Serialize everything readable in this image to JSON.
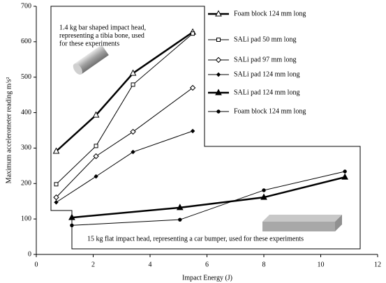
{
  "chart_data": {
    "type": "line",
    "y_label": "Maximum accelerometer reading m/s²",
    "x_label": "Impact Energy (J)",
    "xlim": [
      0,
      12
    ],
    "xticks": [
      0,
      2,
      4,
      6,
      8,
      10,
      12
    ],
    "ylim": [
      0,
      700
    ],
    "yticks": [
      0,
      100,
      200,
      300,
      400,
      500,
      600,
      700
    ],
    "legend": "upper right",
    "annotations": [
      {
        "lines": [
          "1.4 kg bar shaped impact head,",
          "representing a tibia bone, used",
          "for these experiments"
        ]
      },
      {
        "lines": [
          "15 kg flat impact head, representing a car bumper, used for these experiments"
        ]
      }
    ],
    "series": [
      {
        "name": "Foam block 124 mm long",
        "color": "#000000",
        "marker": "triangle-open",
        "line_width": 2.5,
        "x": [
          0.7,
          2.1,
          3.4,
          5.5
        ],
        "values": [
          291,
          393,
          511,
          627
        ]
      },
      {
        "name": "SALi pad 50 mm long",
        "color": "#000000",
        "marker": "square-open",
        "line_width": 1,
        "x": [
          0.7,
          2.1,
          3.4,
          5.5
        ],
        "values": [
          198,
          306,
          479,
          623
        ]
      },
      {
        "name": "SALi pad 97 mm long",
        "color": "#000000",
        "marker": "diamond-open",
        "line_width": 1,
        "x": [
          0.7,
          2.1,
          3.4,
          5.5
        ],
        "values": [
          161,
          277,
          346,
          470
        ]
      },
      {
        "name": "SALi pad 124 mm long",
        "color": "#000000",
        "marker": "diamond",
        "line_width": 1,
        "x": [
          0.7,
          2.1,
          3.4,
          5.5
        ],
        "values": [
          147,
          220,
          289,
          348
        ]
      },
      {
        "name": "SALi pad 124 mm long",
        "color": "#000000",
        "marker": "triangle",
        "line_width": 2.5,
        "x": [
          1.25,
          5.05,
          8.0,
          10.85
        ],
        "values": [
          104,
          132,
          161,
          218
        ]
      },
      {
        "name": "Foam block 124 mm long",
        "color": "#000000",
        "marker": "circle",
        "line_width": 1,
        "x": [
          1.25,
          5.05,
          8.0,
          10.85
        ],
        "values": [
          82,
          98,
          181,
          234
        ]
      }
    ]
  }
}
